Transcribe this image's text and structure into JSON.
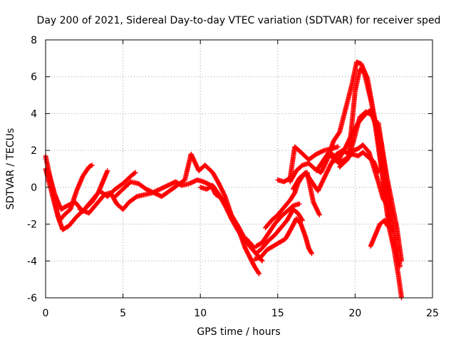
{
  "chart_data": {
    "type": "scatter",
    "title": "Day 200 of 2021, Sidereal Day-to-day VTEC variation (SDTVAR) for receiver sped",
    "xlabel": "GPS time / hours",
    "ylabel": "SDTVAR / TECUs",
    "xlim": [
      0,
      25
    ],
    "ylim": [
      -6,
      8
    ],
    "xticks": [
      0,
      5,
      10,
      15,
      20,
      25
    ],
    "yticks": [
      -6,
      -4,
      -2,
      0,
      2,
      4,
      6,
      8
    ],
    "xtick_labels": [
      "0",
      "5",
      "10",
      "15",
      "20",
      "25"
    ],
    "ytick_labels": [
      "-6",
      "-4",
      "-2",
      "0",
      "2",
      "4",
      "6",
      "8"
    ],
    "grid": true,
    "marker": "plus",
    "series": [
      {
        "color": "#ff0000",
        "x": [
          0.0,
          0.3,
          0.6,
          0.9,
          1.2,
          1.6,
          2.0,
          2.4,
          2.8,
          3.0
        ],
        "y": [
          1.7,
          0.5,
          -0.9,
          -1.8,
          -1.5,
          -1.2,
          -0.2,
          0.6,
          1.1,
          1.2
        ]
      },
      {
        "color": "#ff0000",
        "x": [
          0.0,
          0.4,
          0.8,
          1.1,
          1.5,
          2.0,
          2.5,
          3.0,
          3.4,
          3.8,
          4.0
        ],
        "y": [
          1.0,
          -0.3,
          -1.6,
          -2.3,
          -2.1,
          -1.6,
          -1.2,
          -0.8,
          -0.3,
          0.5,
          0.9
        ]
      },
      {
        "color": "#ff0000",
        "x": [
          0.2,
          0.6,
          1.0,
          1.4,
          1.9,
          2.4,
          2.9,
          3.5,
          4.0,
          4.5,
          5.0,
          5.5,
          5.8
        ],
        "y": [
          0.8,
          -0.4,
          -1.2,
          -1.0,
          -0.8,
          -1.3,
          -0.8,
          -0.2,
          -0.5,
          -0.1,
          0.2,
          0.6,
          0.8
        ]
      },
      {
        "color": "#ff0000",
        "x": [
          2.2,
          2.8,
          3.3,
          3.8,
          4.2,
          4.6,
          5.0,
          5.4,
          5.9,
          6.4,
          6.9,
          7.4,
          7.9,
          8.4,
          8.8,
          9.3,
          9.8,
          10.2,
          10.7,
          11.0,
          11.4,
          11.8,
          12.2,
          12.6,
          12.9,
          13.2,
          13.5,
          13.8
        ],
        "y": [
          -1.2,
          -1.4,
          -0.9,
          -0.4,
          -0.3,
          -0.9,
          -1.2,
          -0.8,
          -0.5,
          -0.4,
          -0.3,
          -0.1,
          0.1,
          0.3,
          0.1,
          0.2,
          0.4,
          0.3,
          0.1,
          -0.4,
          -0.6,
          -1.2,
          -1.8,
          -2.6,
          -3.3,
          -3.8,
          -4.3,
          -4.7
        ]
      },
      {
        "color": "#ff0000",
        "x": [
          4.5,
          5.0,
          5.5,
          6.0,
          6.5,
          7.0,
          7.5,
          8.0,
          8.5,
          9.0,
          9.4,
          9.9,
          10.3,
          10.8,
          11.2,
          11.6,
          12.0,
          12.5,
          13.0,
          13.5,
          14.0
        ],
        "y": [
          -0.5,
          -0.1,
          0.3,
          0.2,
          -0.1,
          -0.3,
          -0.5,
          -0.2,
          0.1,
          0.4,
          1.8,
          0.9,
          1.2,
          0.8,
          0.2,
          -0.5,
          -1.5,
          -2.2,
          -3.0,
          -3.5,
          -4.0
        ]
      },
      {
        "color": "#ff0000",
        "x": [
          10.0,
          10.4,
          10.8,
          11.2,
          11.6,
          12.0,
          12.4,
          12.8,
          13.2,
          13.5
        ],
        "y": [
          0.0,
          -0.1,
          0.1,
          -0.4,
          -1.0,
          -1.7,
          -2.3,
          -2.8,
          -3.0,
          -3.3
        ]
      },
      {
        "color": "#ff0000",
        "x": [
          13.0,
          13.3,
          13.6,
          14.0,
          14.4,
          14.8,
          15.2,
          15.6,
          16.0,
          16.3,
          16.6
        ],
        "y": [
          -2.8,
          -3.3,
          -3.6,
          -3.3,
          -2.9,
          -2.6,
          -2.2,
          -1.8,
          -1.2,
          -1.4,
          -1.8
        ]
      },
      {
        "color": "#ff0000",
        "x": [
          13.5,
          13.9,
          14.3,
          14.7,
          15.1,
          15.5,
          15.9,
          16.2,
          16.5,
          16.8,
          17.0,
          17.2
        ],
        "y": [
          -3.9,
          -3.8,
          -3.4,
          -3.2,
          -3.0,
          -2.8,
          -2.2,
          -1.7,
          -2.0,
          -2.7,
          -3.3,
          -3.6
        ]
      },
      {
        "color": "#ff0000",
        "x": [
          13.6,
          14.0,
          14.4,
          14.8,
          15.2,
          15.6,
          16.0,
          16.4
        ],
        "y": [
          -3.2,
          -3.0,
          -2.5,
          -2.0,
          -1.6,
          -1.3,
          -1.0,
          -0.9
        ]
      },
      {
        "color": "#ff0000",
        "x": [
          14.2,
          14.6,
          15.0,
          15.4,
          15.8,
          16.1,
          16.3,
          16.6,
          16.9,
          17.3,
          17.7
        ],
        "y": [
          -2.2,
          -1.8,
          -1.5,
          -1.1,
          -0.7,
          -0.3,
          0.2,
          0.6,
          0.8,
          -0.8,
          -1.5
        ]
      },
      {
        "color": "#ff0000",
        "x": [
          15.0,
          15.4,
          15.8,
          16.1,
          16.5,
          17.0,
          17.5,
          18.0,
          18.5,
          18.9
        ],
        "y": [
          0.4,
          0.3,
          0.5,
          2.2,
          1.9,
          1.5,
          1.8,
          2.0,
          2.1,
          2.2
        ]
      },
      {
        "color": "#ff0000",
        "x": [
          15.8,
          16.2,
          16.6,
          17.0,
          17.4,
          17.8,
          18.2,
          18.6,
          19.0,
          19.4,
          19.8,
          20.1,
          20.4,
          20.8,
          21.1,
          21.4,
          21.7,
          22.0,
          22.2
        ],
        "y": [
          0.3,
          0.9,
          1.2,
          1.3,
          1.0,
          0.8,
          1.5,
          2.5,
          3.0,
          4.3,
          5.6,
          6.8,
          6.7,
          5.9,
          4.5,
          2.8,
          1.0,
          -0.6,
          -1.2
        ]
      },
      {
        "color": "#ff0000",
        "x": [
          16.0,
          16.4,
          16.8,
          17.2,
          17.6,
          18.0,
          18.4,
          18.8,
          19.2,
          19.6,
          20.0,
          20.3,
          20.6,
          21.0,
          21.3,
          21.6,
          21.9,
          22.2,
          22.5,
          22.8,
          23.0
        ],
        "y": [
          -0.1,
          0.5,
          0.8,
          0.3,
          -0.2,
          0.5,
          1.2,
          1.8,
          2.0,
          1.8,
          5.2,
          6.4,
          6.2,
          4.8,
          3.6,
          2.0,
          -0.4,
          -2.2,
          -3.3,
          -4.8,
          -6.0
        ]
      },
      {
        "color": "#ff0000",
        "x": [
          17.5,
          17.9,
          18.3,
          18.7,
          19.1,
          19.5,
          19.9,
          20.2,
          20.5,
          20.9,
          21.2,
          21.5,
          21.8,
          22.1
        ],
        "y": [
          0.9,
          1.4,
          1.9,
          1.7,
          1.4,
          1.6,
          2.0,
          2.1,
          2.3,
          1.9,
          1.1,
          0.3,
          -0.6,
          -1.0
        ]
      },
      {
        "color": "#ff0000",
        "x": [
          18.3,
          18.7,
          19.1,
          19.5,
          19.9,
          20.3,
          20.7,
          21.1,
          21.5,
          21.9,
          22.3,
          22.7,
          23.0
        ],
        "y": [
          1.8,
          1.5,
          1.2,
          1.5,
          2.5,
          3.8,
          4.1,
          3.9,
          3.0,
          1.2,
          -0.5,
          -2.2,
          -4.0
        ]
      },
      {
        "color": "#ff0000",
        "x": [
          18.6,
          19.0,
          19.4,
          19.8,
          20.2,
          20.6,
          21.0,
          21.4,
          21.7,
          22.0,
          22.3,
          22.6,
          22.9
        ],
        "y": [
          1.4,
          1.6,
          2.2,
          2.9,
          3.5,
          3.9,
          4.2,
          3.4,
          2.4,
          0.8,
          -1.3,
          -2.8,
          -4.3
        ]
      },
      {
        "color": "#ff0000",
        "x": [
          21.5,
          21.8,
          22.0,
          22.2,
          22.4
        ],
        "y": [
          3.5,
          1.8,
          -0.2,
          -1.8,
          -2.4
        ]
      },
      {
        "color": "#ff0000",
        "x": [
          21.0,
          21.3,
          21.6,
          21.9,
          22.1
        ],
        "y": [
          -3.2,
          -2.6,
          -2.0,
          -1.8,
          -2.1
        ]
      },
      {
        "color": "#ff0000",
        "x": [
          19.0,
          19.4,
          19.8,
          20.2,
          20.5,
          20.9,
          21.2,
          21.5
        ],
        "y": [
          1.1,
          1.5,
          1.8,
          1.7,
          1.9,
          1.6,
          1.4,
          0.8
        ]
      }
    ]
  }
}
